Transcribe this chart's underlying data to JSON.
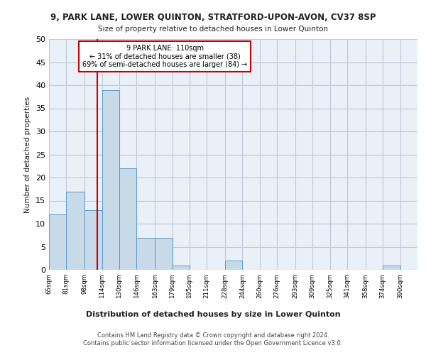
{
  "title1": "9, PARK LANE, LOWER QUINTON, STRATFORD-UPON-AVON, CV37 8SP",
  "title2": "Size of property relative to detached houses in Lower Quinton",
  "xlabel": "Distribution of detached houses by size in Lower Quinton",
  "ylabel": "Number of detached properties",
  "bin_labels": [
    "65sqm",
    "81sqm",
    "98sqm",
    "114sqm",
    "130sqm",
    "146sqm",
    "163sqm",
    "179sqm",
    "195sqm",
    "211sqm",
    "228sqm",
    "244sqm",
    "260sqm",
    "276sqm",
    "293sqm",
    "309sqm",
    "325sqm",
    "341sqm",
    "358sqm",
    "374sqm",
    "390sqm"
  ],
  "bin_edges": [
    65,
    81,
    98,
    114,
    130,
    146,
    163,
    179,
    195,
    211,
    228,
    244,
    260,
    276,
    293,
    309,
    325,
    341,
    358,
    374,
    390
  ],
  "counts": [
    12,
    17,
    13,
    39,
    22,
    7,
    7,
    1,
    0,
    0,
    2,
    0,
    0,
    0,
    0,
    0,
    0,
    0,
    0,
    1,
    0
  ],
  "bar_color": "#c8d9e8",
  "bar_edge_color": "#5b9bd5",
  "property_size": 110,
  "vline_color": "#cc0000",
  "annotation_text": "9 PARK LANE: 110sqm\n← 31% of detached houses are smaller (38)\n69% of semi-detached houses are larger (84) →",
  "annotation_box_color": "#cc0000",
  "ylim": [
    0,
    50
  ],
  "yticks": [
    0,
    5,
    10,
    15,
    20,
    25,
    30,
    35,
    40,
    45,
    50
  ],
  "grid_color": "#c0c8d8",
  "bg_color": "#eaf0f8",
  "footer": "Contains HM Land Registry data © Crown copyright and database right 2024.\nContains public sector information licensed under the Open Government Licence v3.0."
}
